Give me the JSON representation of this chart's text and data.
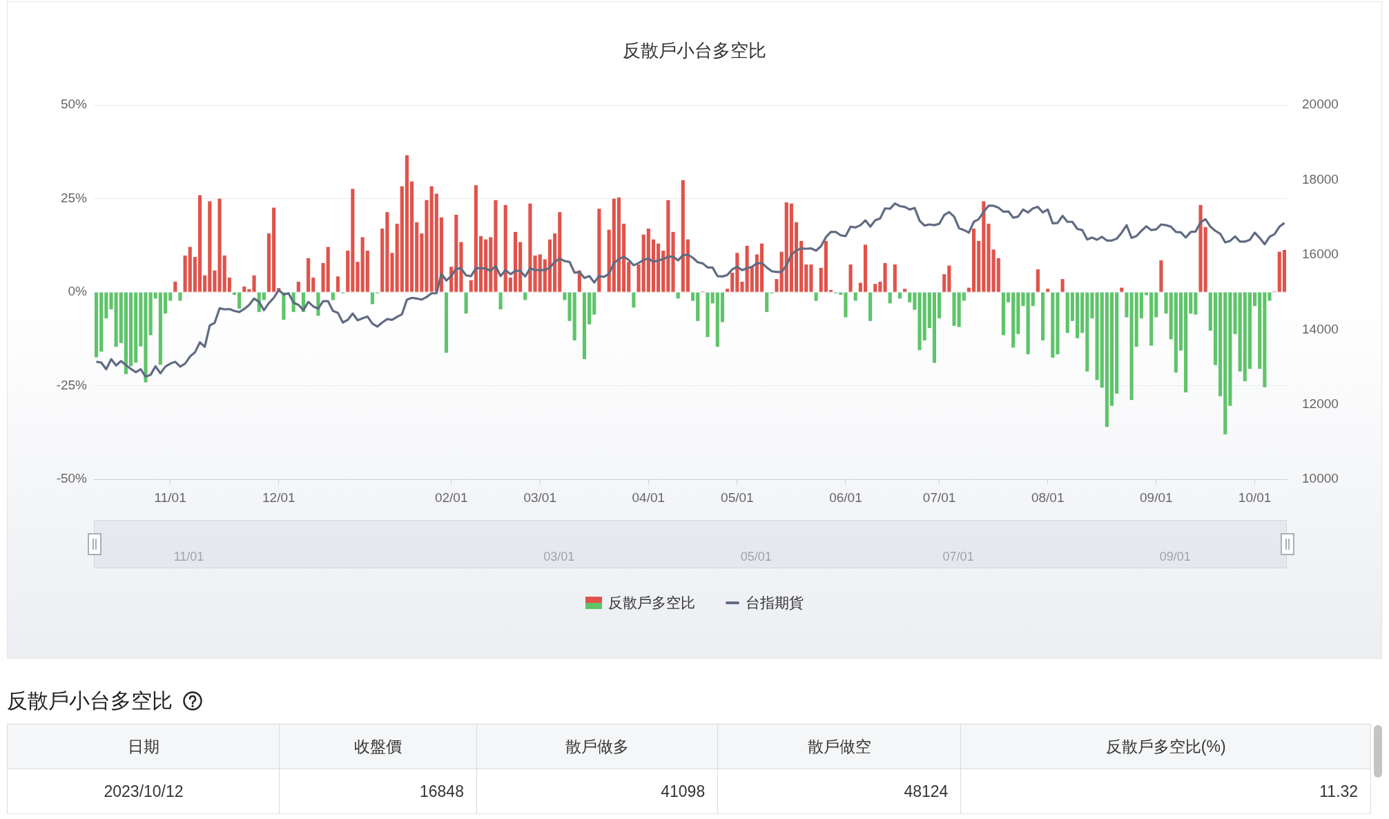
{
  "chart_data": [
    {
      "type": "bar",
      "title": "反散戶小台多空比",
      "categories": [
        null,
        null,
        null,
        null,
        null,
        null,
        null,
        null,
        null,
        null,
        null,
        null,
        null,
        null,
        null,
        "11/01",
        null,
        null,
        null,
        null,
        null,
        null,
        null,
        null,
        null,
        null,
        null,
        null,
        null,
        null,
        null,
        null,
        null,
        null,
        null,
        null,
        null,
        "12/01",
        null,
        null,
        null,
        null,
        null,
        null,
        null,
        null,
        null,
        null,
        null,
        null,
        null,
        null,
        null,
        null,
        null,
        null,
        null,
        null,
        null,
        null,
        null,
        null,
        null,
        null,
        null,
        null,
        null,
        null,
        null,
        null,
        null,
        null,
        "02/01",
        null,
        null,
        null,
        null,
        null,
        null,
        null,
        null,
        null,
        null,
        null,
        null,
        null,
        null,
        null,
        null,
        null,
        "03/01",
        null,
        null,
        null,
        null,
        null,
        null,
        null,
        null,
        null,
        null,
        null,
        null,
        null,
        null,
        null,
        null,
        null,
        null,
        null,
        null,
        null,
        "04/01",
        null,
        null,
        null,
        null,
        null,
        null,
        null,
        null,
        null,
        null,
        null,
        null,
        null,
        null,
        null,
        null,
        null,
        "05/01",
        null,
        null,
        null,
        null,
        null,
        null,
        null,
        null,
        null,
        null,
        null,
        null,
        null,
        null,
        null,
        null,
        null,
        null,
        null,
        null,
        null,
        "06/01",
        null,
        null,
        null,
        null,
        null,
        null,
        null,
        null,
        null,
        null,
        null,
        null,
        null,
        null,
        null,
        null,
        null,
        null,
        "07/01",
        null,
        null,
        null,
        null,
        null,
        null,
        null,
        null,
        null,
        null,
        null,
        null,
        null,
        null,
        null,
        null,
        null,
        null,
        null,
        null,
        null,
        "08/01",
        null,
        null,
        null,
        null,
        null,
        null,
        null,
        null,
        null,
        null,
        null,
        null,
        null,
        null,
        null,
        null,
        null,
        null,
        null,
        null,
        null,
        "09/01",
        null,
        null,
        null,
        null,
        null,
        null,
        null,
        null,
        null,
        null,
        null,
        null,
        null,
        null,
        null,
        null,
        null,
        null,
        null,
        "10/01",
        null,
        null,
        null,
        null,
        null,
        null
      ],
      "series": [
        {
          "name": "反散戶多空比",
          "type": "bar",
          "values": [
            -17.4,
            -15.9,
            -7.0,
            -4.6,
            -14.6,
            -13.6,
            -21.9,
            -19.8,
            -18.8,
            -14.5,
            -24.1,
            -11.5,
            -1.7,
            -19.4,
            -5.7,
            -2.3,
            2.8,
            -2.3,
            9.8,
            12.1,
            9.4,
            25.9,
            4.5,
            24.3,
            5.8,
            25.0,
            9.8,
            3.9,
            -0.7,
            -4.4,
            1.5,
            0.8,
            4.5,
            -5.3,
            -2.1,
            15.7,
            22.6,
            1.1,
            -7.4,
            0,
            -5.3,
            2.8,
            -5.3,
            9.1,
            3.9,
            -6.3,
            7.8,
            12.1,
            -2.1,
            4.2,
            -0.3,
            11.1,
            27.6,
            8.1,
            14.7,
            11.1,
            -3.2,
            -0.3,
            17.0,
            21.4,
            10.5,
            18.3,
            28.3,
            36.6,
            29.6,
            18.7,
            15.7,
            24.6,
            28.3,
            26.3,
            20.0,
            -16.2,
            6.8,
            20.7,
            13.4,
            -5.7,
            3.2,
            28.6,
            15.0,
            14.1,
            14.7,
            24.6,
            -4.6,
            23.3,
            3.9,
            16.1,
            13.4,
            -2.1,
            23.7,
            9.8,
            10.1,
            8.8,
            14.1,
            15.7,
            21.4,
            -2.1,
            -7.7,
            -12.9,
            5.8,
            -17.9,
            -8.6,
            -6.0,
            22.3,
            0,
            16.7,
            25.0,
            25.3,
            18.3,
            8.1,
            -4.1,
            7.4,
            15.4,
            17.0,
            14.1,
            13.0,
            11.1,
            24.6,
            16.1,
            -1.7,
            29.9,
            14.1,
            -2.3,
            -7.7,
            0.2,
            -12.0,
            -3.0,
            -14.6,
            -8.0,
            0.9,
            5.2,
            10.5,
            2.8,
            12.4,
            6.8,
            10.1,
            13.0,
            -5.3,
            -0.3,
            3.5,
            10.8,
            24.0,
            23.7,
            18.7,
            13.7,
            7.4,
            7.4,
            -2.3,
            6.5,
            13.7,
            0.6,
            -0.3,
            -0.7,
            -6.7,
            7.4,
            -2.3,
            2.5,
            12.7,
            -7.7,
            2.2,
            2.8,
            7.8,
            -3.0,
            7.4,
            -1.7,
            0.9,
            -2.7,
            -4.7,
            -15.5,
            -12.9,
            -9.6,
            -18.9,
            -7.0,
            4.8,
            7.1,
            -9.0,
            -9.3,
            -2.3,
            1.2,
            17.0,
            13.7,
            24.3,
            18.3,
            11.4,
            9.1,
            -11.5,
            -2.7,
            -14.8,
            -11.2,
            -3.7,
            -16.6,
            -3.7,
            6.1,
            -12.9,
            0.9,
            -17.5,
            -16.6,
            3.5,
            -10.9,
            -7.7,
            -12.3,
            -10.9,
            -21.2,
            -7.0,
            -23.5,
            -25.5,
            -36.0,
            -30.4,
            -27.1,
            1.2,
            -6.7,
            -28.8,
            -14.6,
            -7.0,
            -0.8,
            -14.3,
            -6.7,
            8.5,
            -5.7,
            -12.6,
            -21.5,
            -15.6,
            -26.8,
            -5.7,
            -6.0,
            23.3,
            17.4,
            -10.3,
            -19.5,
            -27.8,
            -38.0,
            -30.4,
            -11.2,
            -21.2,
            -23.8,
            -20.5,
            -3.7,
            -20.5,
            -25.4,
            -2.3,
            0.2,
            10.8,
            11.3
          ],
          "colors": [
            "#5ec46a",
            "#5ec46a",
            "#5ec46a",
            "#5ec46a",
            "#5ec46a",
            "#5ec46a",
            "#5ec46a",
            "#5ec46a",
            "#5ec46a",
            "#5ec46a",
            "#5ec46a",
            "#5ec46a",
            "#5ec46a",
            "#5ec46a",
            "#5ec46a",
            "#5ec46a",
            "#e0534b",
            "#5ec46a",
            "#e0534b",
            "#e0534b",
            "#e0534b",
            "#e0534b",
            "#e0534b",
            "#e0534b",
            "#e0534b",
            "#e0534b",
            "#e0534b",
            "#e0534b",
            "#5ec46a",
            "#5ec46a",
            "#e0534b",
            "#e0534b",
            "#e0534b",
            "#5ec46a",
            "#5ec46a",
            "#e0534b",
            "#e0534b",
            "#e0534b",
            "#5ec46a",
            "#e0534b",
            "#5ec46a",
            "#e0534b",
            "#5ec46a",
            "#e0534b",
            "#e0534b",
            "#5ec46a",
            "#e0534b",
            "#e0534b",
            "#5ec46a",
            "#e0534b",
            "#5ec46a",
            "#e0534b",
            "#e0534b",
            "#e0534b",
            "#e0534b",
            "#e0534b",
            "#5ec46a",
            "#5ec46a",
            "#e0534b",
            "#e0534b",
            "#e0534b",
            "#e0534b",
            "#e0534b",
            "#e0534b",
            "#e0534b",
            "#e0534b",
            "#e0534b",
            "#e0534b",
            "#e0534b",
            "#e0534b",
            "#e0534b",
            "#5ec46a",
            "#e0534b",
            "#e0534b",
            "#e0534b",
            "#5ec46a",
            "#e0534b",
            "#e0534b",
            "#e0534b",
            "#e0534b",
            "#e0534b",
            "#e0534b",
            "#5ec46a",
            "#e0534b",
            "#e0534b",
            "#e0534b",
            "#e0534b",
            "#5ec46a",
            "#e0534b",
            "#e0534b",
            "#e0534b",
            "#e0534b",
            "#e0534b",
            "#e0534b",
            "#e0534b",
            "#5ec46a",
            "#5ec46a",
            "#5ec46a",
            "#e0534b",
            "#5ec46a",
            "#5ec46a",
            "#5ec46a",
            "#e0534b",
            "#e0534b",
            "#e0534b",
            "#e0534b",
            "#e0534b",
            "#e0534b",
            "#e0534b",
            "#5ec46a",
            "#e0534b",
            "#e0534b",
            "#e0534b",
            "#e0534b",
            "#e0534b",
            "#e0534b",
            "#e0534b",
            "#e0534b",
            "#5ec46a",
            "#e0534b",
            "#e0534b",
            "#5ec46a",
            "#5ec46a",
            "#e0534b",
            "#5ec46a",
            "#5ec46a",
            "#5ec46a",
            "#5ec46a",
            "#e0534b",
            "#e0534b",
            "#e0534b",
            "#e0534b",
            "#e0534b",
            "#e0534b",
            "#e0534b",
            "#e0534b",
            "#5ec46a",
            "#5ec46a",
            "#e0534b",
            "#e0534b",
            "#e0534b",
            "#e0534b",
            "#e0534b",
            "#e0534b",
            "#e0534b",
            "#e0534b",
            "#5ec46a",
            "#e0534b",
            "#e0534b",
            "#e0534b",
            "#5ec46a",
            "#5ec46a",
            "#5ec46a",
            "#e0534b",
            "#5ec46a",
            "#e0534b",
            "#e0534b",
            "#5ec46a",
            "#e0534b",
            "#e0534b",
            "#e0534b",
            "#5ec46a",
            "#e0534b",
            "#5ec46a",
            "#e0534b",
            "#5ec46a",
            "#5ec46a",
            "#5ec46a",
            "#5ec46a",
            "#5ec46a",
            "#5ec46a",
            "#5ec46a",
            "#e0534b",
            "#e0534b",
            "#5ec46a",
            "#5ec46a",
            "#5ec46a",
            "#e0534b",
            "#e0534b",
            "#e0534b",
            "#e0534b",
            "#e0534b",
            "#e0534b",
            "#e0534b",
            "#5ec46a",
            "#5ec46a",
            "#5ec46a",
            "#5ec46a",
            "#5ec46a",
            "#5ec46a",
            "#5ec46a",
            "#e0534b",
            "#5ec46a",
            "#e0534b",
            "#5ec46a",
            "#5ec46a",
            "#e0534b",
            "#5ec46a",
            "#5ec46a",
            "#5ec46a",
            "#5ec46a",
            "#5ec46a",
            "#5ec46a",
            "#5ec46a",
            "#5ec46a",
            "#5ec46a",
            "#5ec46a",
            "#5ec46a",
            "#e0534b",
            "#5ec46a",
            "#5ec46a",
            "#5ec46a",
            "#5ec46a",
            "#5ec46a",
            "#5ec46a",
            "#5ec46a",
            "#e0534b",
            "#5ec46a",
            "#5ec46a",
            "#5ec46a",
            "#5ec46a",
            "#5ec46a",
            "#5ec46a",
            "#5ec46a",
            "#e0534b",
            "#e0534b",
            "#5ec46a",
            "#5ec46a",
            "#5ec46a",
            "#5ec46a",
            "#5ec46a",
            "#5ec46a",
            "#5ec46a",
            "#5ec46a",
            "#5ec46a",
            "#5ec46a",
            "#5ec46a",
            "#5ec46a",
            "#5ec46a",
            "#e0534b",
            "#e0534b",
            "#e0534b"
          ]
        },
        {
          "name": "台指期貨",
          "type": "line",
          "axis": "y2",
          "color": "#5f6b82",
          "values": [
            13140,
            13120,
            12940,
            13210,
            13040,
            13160,
            13050,
            12950,
            12860,
            12940,
            12740,
            12790,
            13020,
            12830,
            13010,
            13090,
            13140,
            13010,
            13090,
            13280,
            13390,
            13660,
            13540,
            14110,
            14180,
            14570,
            14540,
            14550,
            14500,
            14470,
            14550,
            14660,
            14830,
            14740,
            14520,
            14710,
            14850,
            15060,
            14940,
            14970,
            14720,
            14660,
            14520,
            14740,
            14620,
            14560,
            14760,
            14760,
            14500,
            14450,
            14190,
            14260,
            14430,
            14250,
            14300,
            14350,
            14160,
            14080,
            14190,
            14280,
            14260,
            14340,
            14410,
            14800,
            14850,
            14830,
            14800,
            14870,
            14970,
            14970,
            15490,
            15310,
            15430,
            15630,
            15630,
            15450,
            15430,
            15640,
            15640,
            15630,
            15570,
            15700,
            15430,
            15590,
            15480,
            15570,
            15570,
            15420,
            15640,
            15590,
            15590,
            15590,
            15660,
            15810,
            15900,
            15830,
            15810,
            15520,
            15540,
            15380,
            15430,
            15260,
            15430,
            15410,
            15490,
            15780,
            15880,
            15950,
            15860,
            15720,
            15780,
            15860,
            15900,
            15810,
            15850,
            15880,
            15950,
            15950,
            15850,
            15990,
            16000,
            15920,
            15800,
            15770,
            15660,
            15660,
            15430,
            15420,
            15460,
            15610,
            15680,
            15590,
            15640,
            15680,
            15770,
            15780,
            15660,
            15560,
            15540,
            15540,
            15720,
            16000,
            16120,
            16170,
            16160,
            16170,
            16110,
            16230,
            16470,
            16610,
            16610,
            16520,
            16500,
            16750,
            16730,
            16790,
            16920,
            16750,
            16920,
            16970,
            17240,
            17230,
            17370,
            17300,
            17280,
            17210,
            17250,
            16910,
            16780,
            16810,
            16790,
            16830,
            17060,
            17140,
            17020,
            16710,
            16660,
            16590,
            16880,
            16950,
            17150,
            17310,
            17310,
            17260,
            17150,
            17160,
            16990,
            17020,
            17210,
            17130,
            17240,
            17280,
            17130,
            17210,
            16840,
            16850,
            17040,
            16880,
            16880,
            16690,
            16660,
            16410,
            16460,
            16400,
            16480,
            16380,
            16380,
            16430,
            16590,
            16790,
            16450,
            16500,
            16640,
            16760,
            16660,
            16680,
            16810,
            16790,
            16750,
            16610,
            16600,
            16460,
            16610,
            16620,
            16870,
            16950,
            16750,
            16640,
            16560,
            16330,
            16370,
            16490,
            16350,
            16350,
            16400,
            16590,
            16450,
            16280,
            16480,
            16550,
            16750,
            16850
          ]
        }
      ],
      "ylim": [
        -50,
        50
      ],
      "yticks": [
        {
          "value": -50,
          "label": "-50%"
        },
        {
          "value": -25,
          "label": "-25%"
        },
        {
          "value": 0,
          "label": "0%"
        },
        {
          "value": 25,
          "label": "25%"
        },
        {
          "value": 50,
          "label": "50%"
        }
      ],
      "y2lim": [
        10000,
        20000
      ],
      "y2ticks": [
        10000,
        12000,
        14000,
        16000,
        18000,
        20000
      ],
      "grid": "y",
      "legend": "bottom",
      "marker": "none",
      "line_style": "solid",
      "annotations": [
        "11/01",
        "03/01",
        "05/01",
        "07/01",
        "09/01"
      ]
    },
    {
      "type": "other",
      "title": "反散戶小台多空比",
      "categories": [
        "日期",
        "收盤價",
        "散戶做多",
        "散戶做空",
        "反散戶多空比(%)"
      ],
      "annotations": [
        "2023/10/12",
        "16848",
        "41098",
        "48124",
        "11.32"
      ]
    }
  ]
}
